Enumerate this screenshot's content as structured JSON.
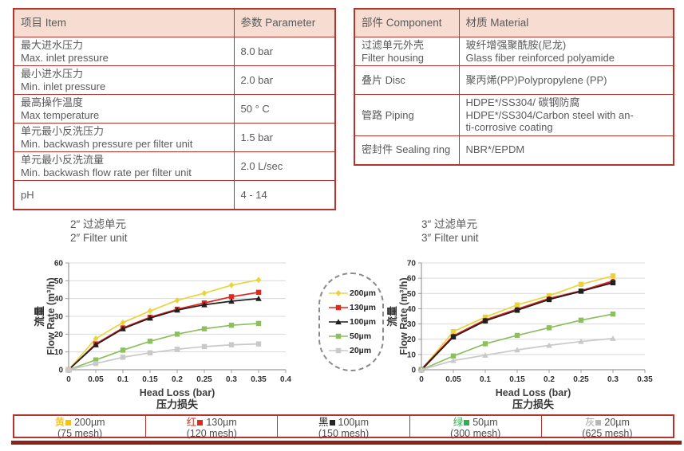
{
  "colors": {
    "table_border": "#b5342c",
    "header_bg": "#f7ddd1",
    "text": "#5a5a5a",
    "grid": "#d9d9d9",
    "axis": "#9b9b9b",
    "rule": "#8e2217"
  },
  "tables": {
    "parameter": {
      "headers": [
        "项目 Item",
        "参数 Parameter"
      ],
      "rows": [
        {
          "cells": [
            [
              "最大进水压力",
              "Max. inlet pressure"
            ],
            [
              "8.0 bar"
            ]
          ]
        },
        {
          "cells": [
            [
              "最小进水压力",
              "Min. inlet pressure"
            ],
            [
              "2.0 bar"
            ]
          ]
        },
        {
          "cells": [
            [
              "最高操作温度",
              "Max temperature"
            ],
            [
              "50 ° C"
            ]
          ]
        },
        {
          "cells": [
            [
              "单元最小反洗压力",
              "Min. backwash pressure per filter unit"
            ],
            [
              "1.5 bar"
            ]
          ]
        },
        {
          "cells": [
            [
              "单元最小反洗流量",
              "Min. backwash flow rate per filter unit"
            ],
            [
              "2.0 L/sec"
            ]
          ]
        },
        {
          "cells": [
            [
              "pH"
            ],
            [
              "4 - 14"
            ]
          ]
        }
      ]
    },
    "material": {
      "headers": [
        "部件 Component",
        "材质 Material"
      ],
      "rows": [
        {
          "cells": [
            [
              "过滤单元外壳",
              "Filter housing"
            ],
            [
              "玻纤增强聚酰胺(尼龙)",
              "Glass fiber reinforced polyamide"
            ]
          ]
        },
        {
          "cells": [
            [
              "叠片 Disc"
            ],
            [
              "聚丙烯(PP)Polypropylene (PP)"
            ]
          ]
        },
        {
          "cells": [
            [
              "管路 Piping"
            ],
            [
              "HDPE*/SS304/ 碳钢防腐",
              "HDPE*/SS304/Carbon steel with an-",
              "ti-corrosive coating"
            ]
          ]
        },
        {
          "cells": [
            [
              "密封件 Sealing ring"
            ],
            [
              "NBR*/EPDM"
            ]
          ]
        }
      ]
    }
  },
  "chart_data": [
    {
      "type": "line",
      "title": [
        "2″ 过滤单元",
        "2″ Filter unit"
      ],
      "xlabel_lines": [
        "Head Loss (bar)",
        "压力损失"
      ],
      "ylabel_lines": [
        "流量",
        "Flow Rate (m³/h)"
      ],
      "x": [
        0,
        0.05,
        0.1,
        0.15,
        0.2,
        0.25,
        0.3,
        0.35
      ],
      "xlim": [
        0,
        0.4
      ],
      "ylim": [
        0,
        60
      ],
      "xticks": [
        0,
        0.05,
        0.1,
        0.15,
        0.2,
        0.25,
        0.3,
        0.35,
        0.4
      ],
      "yticks": [
        0,
        10,
        20,
        30,
        40,
        50,
        60
      ],
      "grid": "horizontal",
      "series": [
        {
          "name": "200µm",
          "color": "#e8d53c",
          "marker": "diamond",
          "line_width": 1.7,
          "values": [
            0,
            17.5,
            26.5,
            33,
            39,
            43,
            47.5,
            50.5
          ]
        },
        {
          "name": "130µm",
          "color": "#e0281d",
          "marker": "square",
          "line_width": 1.7,
          "values": [
            0,
            14.5,
            23.5,
            29.5,
            34,
            37.5,
            41,
            43.5
          ]
        },
        {
          "name": "100µm",
          "color": "#1f1f1f",
          "marker": "triangle",
          "line_width": 1.7,
          "values": [
            0,
            14,
            23,
            29,
            33.5,
            36.5,
            38.5,
            40
          ]
        },
        {
          "name": "50µm",
          "color": "#8cc05d",
          "marker": "square",
          "line_width": 1.7,
          "values": [
            0,
            5.5,
            11,
            16,
            20,
            23,
            25,
            26
          ]
        },
        {
          "name": "20µm",
          "color": "#c9c9c9",
          "marker": "square",
          "line_width": 1.7,
          "values": [
            0,
            3.5,
            7,
            9.5,
            11.5,
            13,
            14,
            14.5
          ]
        }
      ]
    },
    {
      "type": "line",
      "title": [
        "3″ 过滤单元",
        "3″ Filter unit"
      ],
      "xlabel_lines": [
        "Head Loss (bar)",
        "压力损失"
      ],
      "ylabel_lines": [
        "流量",
        "Flow Rate (m³/h)"
      ],
      "x": [
        0,
        0.05,
        0.1,
        0.15,
        0.2,
        0.25,
        0.3
      ],
      "xlim": [
        0,
        0.35
      ],
      "ylim": [
        0,
        70
      ],
      "xticks": [
        0,
        0.05,
        0.1,
        0.15,
        0.2,
        0.25,
        0.3,
        0.35
      ],
      "yticks": [
        0,
        10,
        20,
        30,
        40,
        50,
        60,
        70
      ],
      "grid": "horizontal",
      "series": [
        {
          "name": "200µm",
          "color": "#e8d53c",
          "marker": "square",
          "line_width": 1.7,
          "values": [
            0,
            25,
            34.5,
            42.5,
            48.5,
            56,
            61.5
          ]
        },
        {
          "name": "130µm",
          "color": "#e0281d",
          "marker": "circle",
          "line_width": 2.6,
          "values": [
            0,
            22,
            32.5,
            39.5,
            46.5,
            51.5,
            58
          ]
        },
        {
          "name": "100µm",
          "color": "#1f1f1f",
          "marker": "square",
          "line_width": 1.7,
          "values": [
            0,
            21.5,
            32,
            39,
            46,
            51.5,
            57
          ]
        },
        {
          "name": "50µm",
          "color": "#8cc05d",
          "marker": "square",
          "line_width": 1.7,
          "values": [
            0,
            9,
            17,
            22.5,
            27.5,
            32.5,
            36.5
          ]
        },
        {
          "name": "20µm",
          "color": "#c9c9c9",
          "marker": "triangle",
          "line_width": 1.7,
          "values": [
            0,
            6,
            9.5,
            13,
            16,
            18.5,
            20.5
          ]
        }
      ]
    }
  ],
  "mesh_legend": {
    "items": [
      {
        "cn": "黄",
        "cn_color": "#e8b10e",
        "square_color": "#f2c40d",
        "size": "200µm",
        "mesh": "(75 mesh)"
      },
      {
        "cn": "红",
        "cn_color": "#e0281d",
        "square_color": "#e0281d",
        "size": "130µm",
        "mesh": "(120 mesh)"
      },
      {
        "cn": "黑",
        "cn_color": "#262626",
        "square_color": "#262626",
        "size": "100µm",
        "mesh": "(150 mesh)"
      },
      {
        "cn": "绿",
        "cn_color": "#2fb050",
        "square_color": "#2fb050",
        "size": "50µm",
        "mesh": "(300 mesh)"
      },
      {
        "cn": "灰",
        "cn_color": "#a3a3a3",
        "square_color": "#b8b8b8",
        "size": "20µm",
        "mesh": "(625 mesh)"
      }
    ]
  }
}
